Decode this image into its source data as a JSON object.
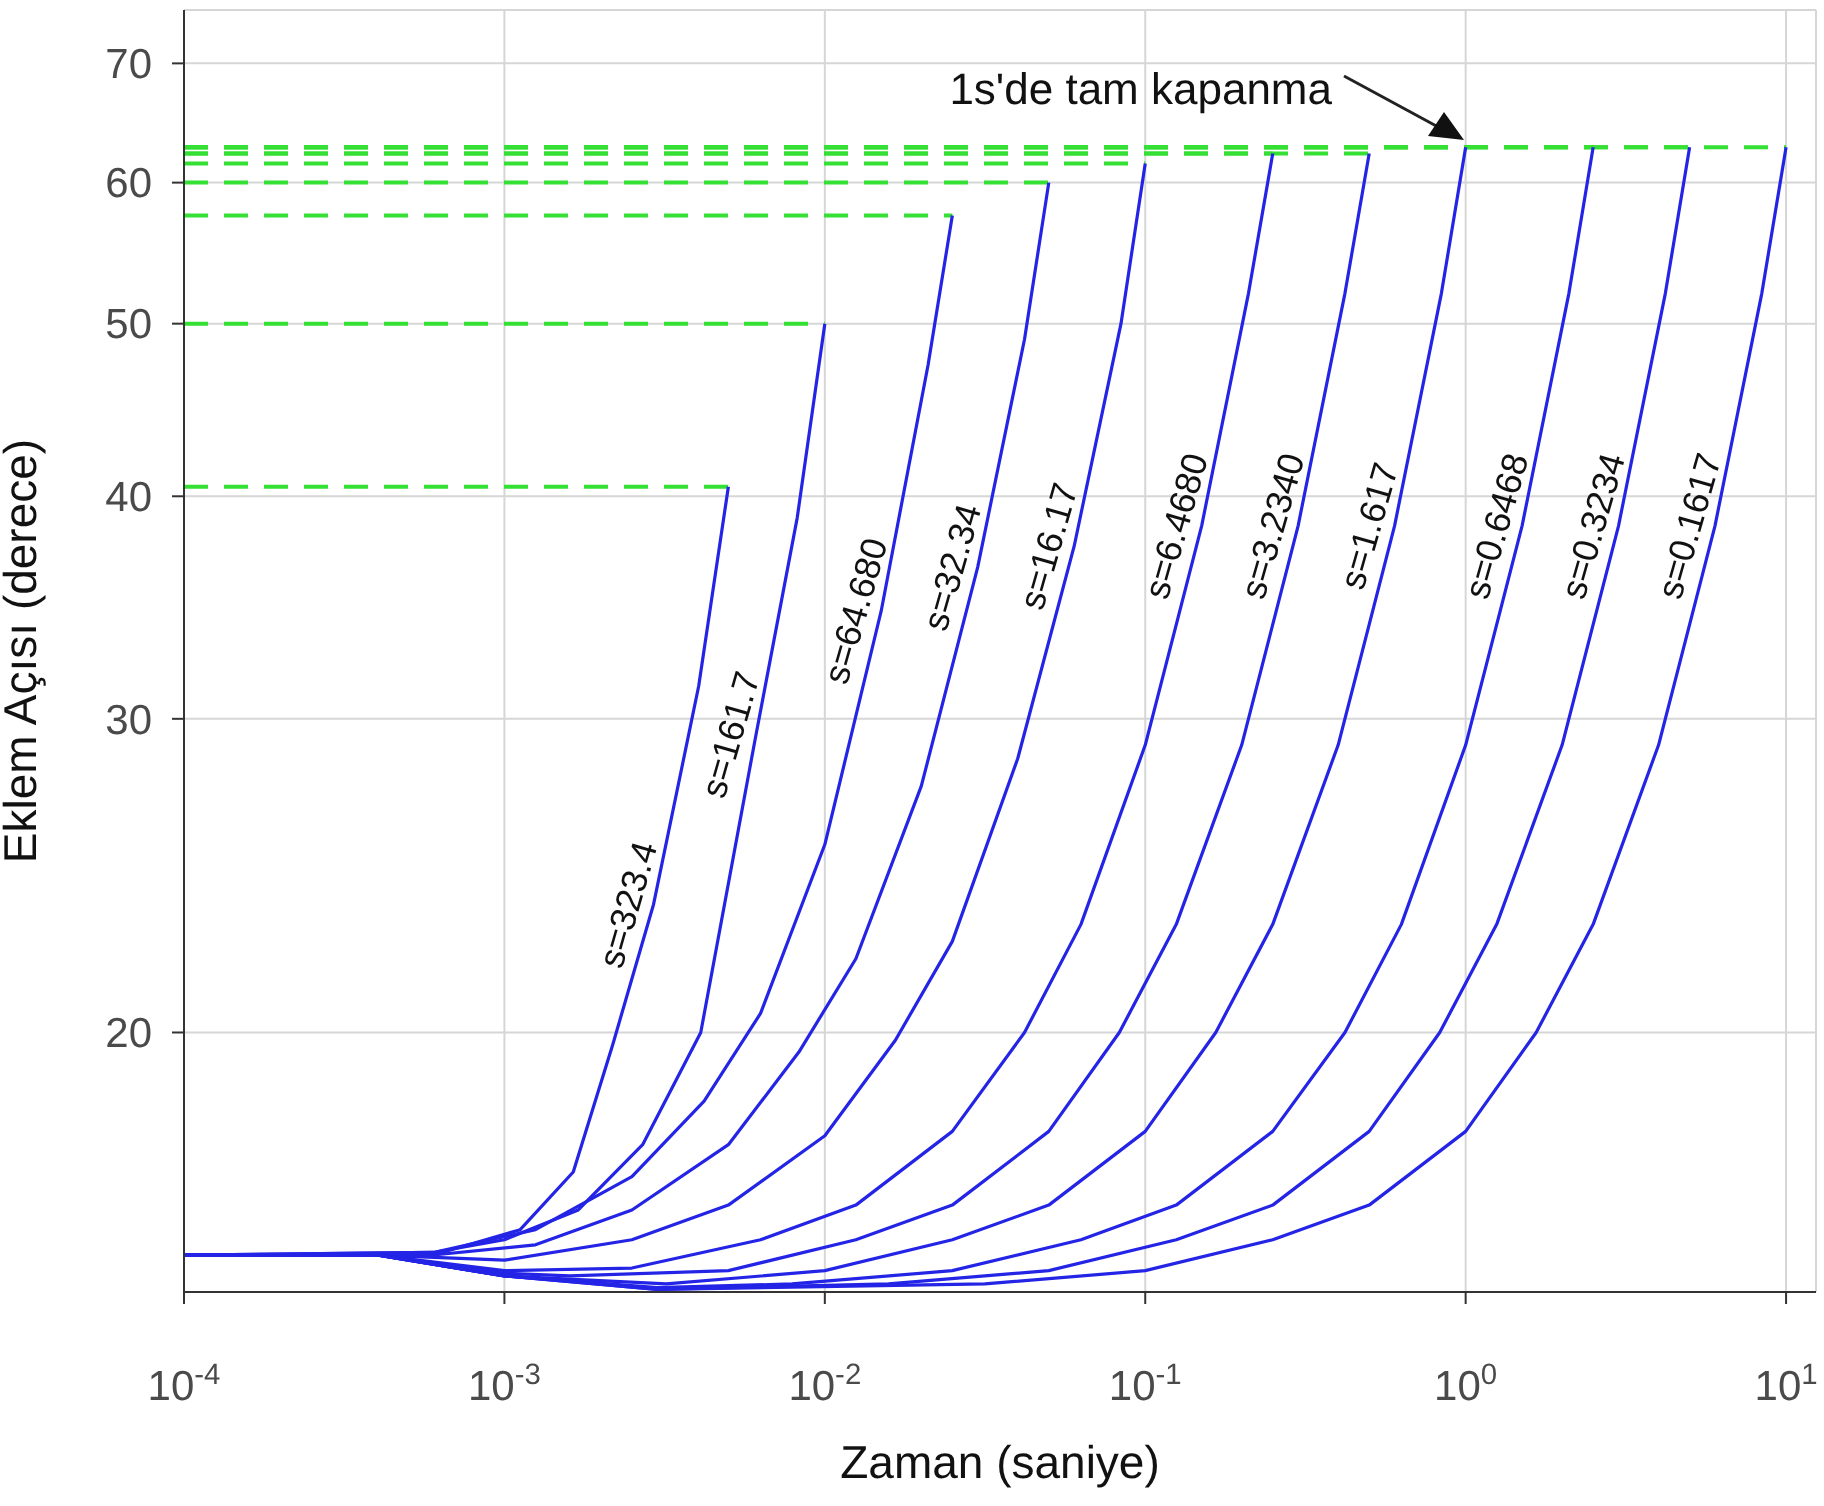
{
  "chart_data": {
    "type": "line",
    "xlabel": "Zaman (saniye)",
    "ylabel": "Eklem Açısı (derece)",
    "log": "xy",
    "grid": true,
    "marker": "none",
    "xlim": [
      0.0001,
      12.4
    ],
    "xticks": [
      {
        "value": 0.0001,
        "label": "10$^{-4}$"
      },
      {
        "value": 0.001,
        "label": "10$^{-3}$"
      },
      {
        "value": 0.01,
        "label": "10$^{-2}$"
      },
      {
        "value": 0.1,
        "label": "10$^{-1}$"
      },
      {
        "value": 1,
        "label": "10$^{0}$"
      },
      {
        "value": 10,
        "label": "10$^{1}$"
      }
    ],
    "ylim": [
      14.3,
      75
    ],
    "yticks": [
      20,
      30,
      40,
      50,
      60,
      70
    ],
    "annotations": [
      "1s'de tam kapanma"
    ],
    "series": [
      {
        "color": "#33e033",
        "line_style": "dashed",
        "x": [
          0.0001,
          0.005
        ],
        "values": [
          40.5,
          40.5
        ]
      },
      {
        "color": "#33e033",
        "line_style": "dashed",
        "x": [
          0.0001,
          0.01
        ],
        "values": [
          50,
          50
        ]
      },
      {
        "color": "#33e033",
        "line_style": "dashed",
        "x": [
          0.0001,
          0.025
        ],
        "values": [
          57.5,
          57.5
        ]
      },
      {
        "color": "#33e033",
        "line_style": "dashed",
        "x": [
          0.0001,
          0.05
        ],
        "values": [
          60,
          60
        ]
      },
      {
        "color": "#33e033",
        "line_style": "dashed",
        "x": [
          0.0001,
          0.1
        ],
        "values": [
          61.5,
          61.5
        ]
      },
      {
        "color": "#33e033",
        "line_style": "dashed",
        "x": [
          0.0001,
          0.25
        ],
        "values": [
          62.3,
          62.3
        ]
      },
      {
        "color": "#33e033",
        "line_style": "dashed",
        "x": [
          0.0001,
          0.5
        ],
        "values": [
          62.3,
          62.3
        ]
      },
      {
        "color": "#33e033",
        "line_style": "dashed",
        "x": [
          0.0001,
          1
        ],
        "values": [
          62.8,
          62.8
        ]
      },
      {
        "color": "#33e033",
        "line_style": "dashed",
        "x": [
          0.0001,
          2.5
        ],
        "values": [
          62.8,
          62.8
        ]
      },
      {
        "color": "#33e033",
        "line_style": "dashed",
        "x": [
          0.0001,
          5
        ],
        "values": [
          62.8,
          62.8
        ]
      },
      {
        "color": "#33e033",
        "line_style": "dashed",
        "x": [
          0.0001,
          10
        ],
        "values": [
          62.8,
          62.8
        ]
      },
      {
        "name": "s=323.4",
        "color": "#2424e6",
        "x": [
          0.0001,
          0.0006,
          0.00112,
          0.00164,
          0.00218,
          0.00292,
          0.00404,
          0.005
        ],
        "values": [
          15,
          15,
          15.5,
          16.7,
          19.7,
          23.6,
          31.3,
          40.5
        ]
      },
      {
        "name": "s=161.7",
        "color": "#2424e6",
        "x": [
          0.0001,
          0.0006,
          0.001,
          0.0017,
          0.0027,
          0.0041,
          0.0061,
          0.0082,
          0.01
        ],
        "values": [
          15,
          15.05,
          15.3,
          15.9,
          17.3,
          20,
          29.4,
          38.9,
          50
        ]
      },
      {
        "name": "s=64.680",
        "color": "#2424e6",
        "x": [
          0.0001,
          0.0006,
          0.00125,
          0.0025,
          0.0042,
          0.0063,
          0.01,
          0.015,
          0.021,
          0.025
        ],
        "values": [
          15,
          15.05,
          15.5,
          16.6,
          18.3,
          20.5,
          25.5,
          34.5,
          47.4,
          57.5
        ]
      },
      {
        "name": "s=32.34",
        "color": "#2424e6",
        "x": [
          0.0001,
          0.0006,
          0.00125,
          0.0025,
          0.005,
          0.0083,
          0.0125,
          0.02,
          0.03,
          0.042,
          0.05
        ],
        "values": [
          15,
          15,
          15.2,
          15.9,
          17.3,
          19.5,
          22,
          27.5,
          36.5,
          49,
          60
        ]
      },
      {
        "name": "s=16.17",
        "color": "#2424e6",
        "x": [
          0.0001,
          0.0004,
          0.001,
          0.0025,
          0.005,
          0.01,
          0.0166,
          0.025,
          0.04,
          0.06,
          0.084,
          0.1
        ],
        "values": [
          15,
          15,
          14.9,
          15.3,
          16,
          17.5,
          19.8,
          22.5,
          28.5,
          37.5,
          50,
          61.5
        ]
      },
      {
        "name": "s=6.4680",
        "color": "#2424e6",
        "x": [
          0.0001,
          0.0004,
          0.001,
          0.0025,
          0.0063,
          0.0125,
          0.025,
          0.042,
          0.063,
          0.1,
          0.15,
          0.21,
          0.25
        ],
        "values": [
          15,
          15,
          14.7,
          14.75,
          15.3,
          16,
          17.6,
          20,
          23,
          29,
          38.5,
          52,
          62.3
        ]
      },
      {
        "name": "s=3.2340",
        "color": "#2424e6",
        "x": [
          0.0001,
          0.0004,
          0.001,
          0.0016,
          0.005,
          0.0125,
          0.025,
          0.05,
          0.083,
          0.125,
          0.2,
          0.3,
          0.42,
          0.5
        ],
        "values": [
          15,
          15,
          14.65,
          14.6,
          14.7,
          15.3,
          16,
          17.6,
          20,
          23,
          29,
          38.5,
          52,
          62.3
        ]
      },
      {
        "name": "s=1.617",
        "color": "#2424e6",
        "x": [
          0.0001,
          0.0004,
          0.001,
          0.0032,
          0.01,
          0.025,
          0.05,
          0.1,
          0.166,
          0.25,
          0.4,
          0.6,
          0.84,
          1
        ],
        "values": [
          15,
          15,
          14.6,
          14.45,
          14.7,
          15.3,
          16,
          17.6,
          20,
          23,
          29,
          38.5,
          52,
          62.8
        ]
      },
      {
        "name": "s=0.6468",
        "color": "#2424e6",
        "x": [
          0.0001,
          0.0004,
          0.001,
          0.003,
          0.0079,
          0.025,
          0.063,
          0.125,
          0.25,
          0.42,
          0.63,
          1,
          1.5,
          2.1,
          2.5
        ],
        "values": [
          15,
          15,
          14.6,
          14.38,
          14.45,
          14.7,
          15.3,
          16,
          17.6,
          20,
          23,
          29,
          38.5,
          52,
          62.8
        ]
      },
      {
        "name": "s=0.3234",
        "color": "#2424e6",
        "x": [
          0.0001,
          0.0004,
          0.001,
          0.003,
          0.0158,
          0.05,
          0.125,
          0.25,
          0.5,
          0.83,
          1.25,
          2,
          3,
          4.2,
          5
        ],
        "values": [
          15,
          15,
          14.6,
          14.35,
          14.45,
          14.7,
          15.3,
          16,
          17.6,
          20,
          23,
          29,
          38.5,
          52,
          62.8
        ]
      },
      {
        "name": "s=0.1617",
        "color": "#2424e6",
        "x": [
          0.0001,
          0.0004,
          0.001,
          0.003,
          0.0316,
          0.1,
          0.25,
          0.5,
          1,
          1.66,
          2.5,
          4,
          6,
          8.4,
          10
        ],
        "values": [
          15,
          15,
          14.6,
          14.35,
          14.45,
          14.7,
          15.3,
          16,
          17.6,
          20,
          23,
          29,
          38.5,
          52,
          62.8
        ]
      }
    ]
  }
}
